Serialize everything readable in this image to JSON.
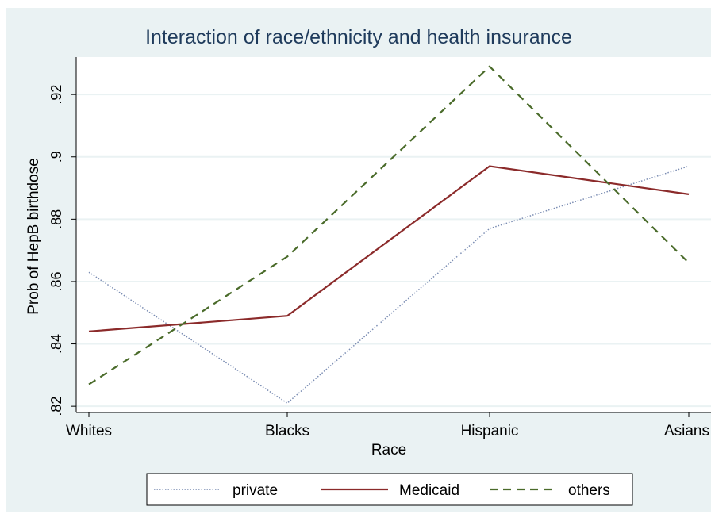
{
  "chart_data": {
    "type": "line",
    "title": "Interaction of race/ethnicity and health insurance",
    "xlabel": "Race",
    "ylabel": "Prob of HepB birthdose",
    "categories": [
      "Whites",
      "Blacks",
      "Hispanic",
      "Asians"
    ],
    "yticks": [
      ".82",
      ".84",
      ".86",
      ".88",
      ".9",
      ".92"
    ],
    "ytick_values": [
      0.82,
      0.84,
      0.86,
      0.88,
      0.9,
      0.92
    ],
    "ylim": [
      0.818,
      0.932
    ],
    "grid": true,
    "legend_position": "bottom",
    "series": [
      {
        "name": "private",
        "values": [
          0.863,
          0.821,
          0.877,
          0.897
        ],
        "color": "#7b8db3",
        "style": "dotted"
      },
      {
        "name": "Medicaid",
        "values": [
          0.844,
          0.849,
          0.897,
          0.888
        ],
        "color": "#8b2a2a",
        "style": "solid"
      },
      {
        "name": "others",
        "values": [
          0.827,
          0.868,
          0.929,
          0.866
        ],
        "color": "#4a6b2a",
        "style": "dashed"
      }
    ]
  },
  "colors": {
    "page_background": "#ffffff",
    "outer_background": "#eaf2f3",
    "plot_background": "#ffffff",
    "grid": "#eaf2f3",
    "title": "#1f3b5c",
    "text": "#000000"
  }
}
